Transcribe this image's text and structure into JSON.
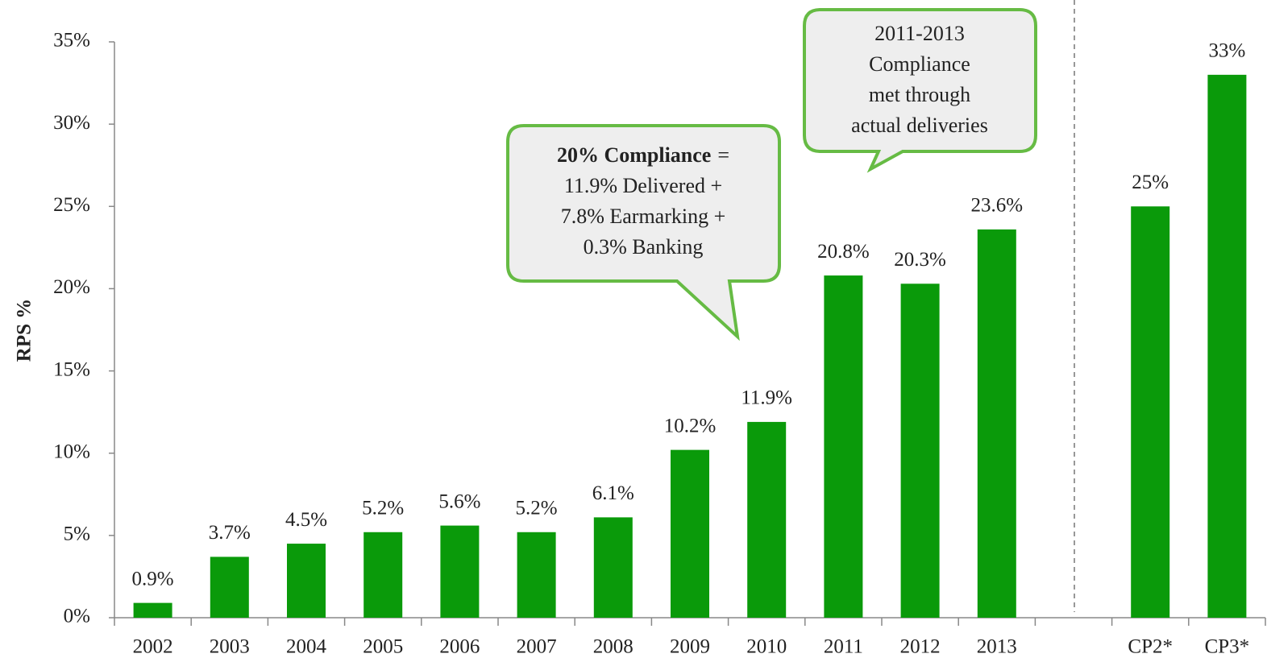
{
  "chart_data": {
    "type": "bar",
    "y_axis_label": "RPS %",
    "categories": [
      "2002",
      "2003",
      "2004",
      "2005",
      "2006",
      "2007",
      "2008",
      "2009",
      "2010",
      "2011",
      "2012",
      "2013",
      null,
      "CP2*",
      "CP3*"
    ],
    "values": [
      0.9,
      3.7,
      4.5,
      5.2,
      5.6,
      5.2,
      6.1,
      10.2,
      11.9,
      20.8,
      20.3,
      23.6,
      null,
      25,
      33
    ],
    "value_labels": [
      "0.9%",
      "3.7%",
      "4.5%",
      "5.2%",
      "5.6%",
      "5.2%",
      "6.1%",
      "10.2%",
      "11.9%",
      "20.8%",
      "20.3%",
      "23.6%",
      null,
      "25%",
      "33%"
    ],
    "color": "#0a9a0a",
    "ylim": [
      0,
      35
    ],
    "yticks": [
      {
        "value": 0,
        "label": "0%"
      },
      {
        "value": 5,
        "label": "5%"
      },
      {
        "value": 10,
        "label": "10%"
      },
      {
        "value": 15,
        "label": "15%"
      },
      {
        "value": 20,
        "label": "20%"
      },
      {
        "value": 25,
        "label": "25%"
      },
      {
        "value": 30,
        "label": "30%"
      },
      {
        "value": 35,
        "label": "35%"
      }
    ],
    "annotations": [
      {
        "lines": [
          "2011-2013",
          "Compliance",
          "met through",
          "actual deliveries"
        ]
      },
      {
        "bold": "20% Compliance",
        "after_bold": "=",
        "lines": [
          "11.9% Delivered +",
          "7.8% Earmarking +",
          "0.3% Banking"
        ]
      }
    ]
  }
}
